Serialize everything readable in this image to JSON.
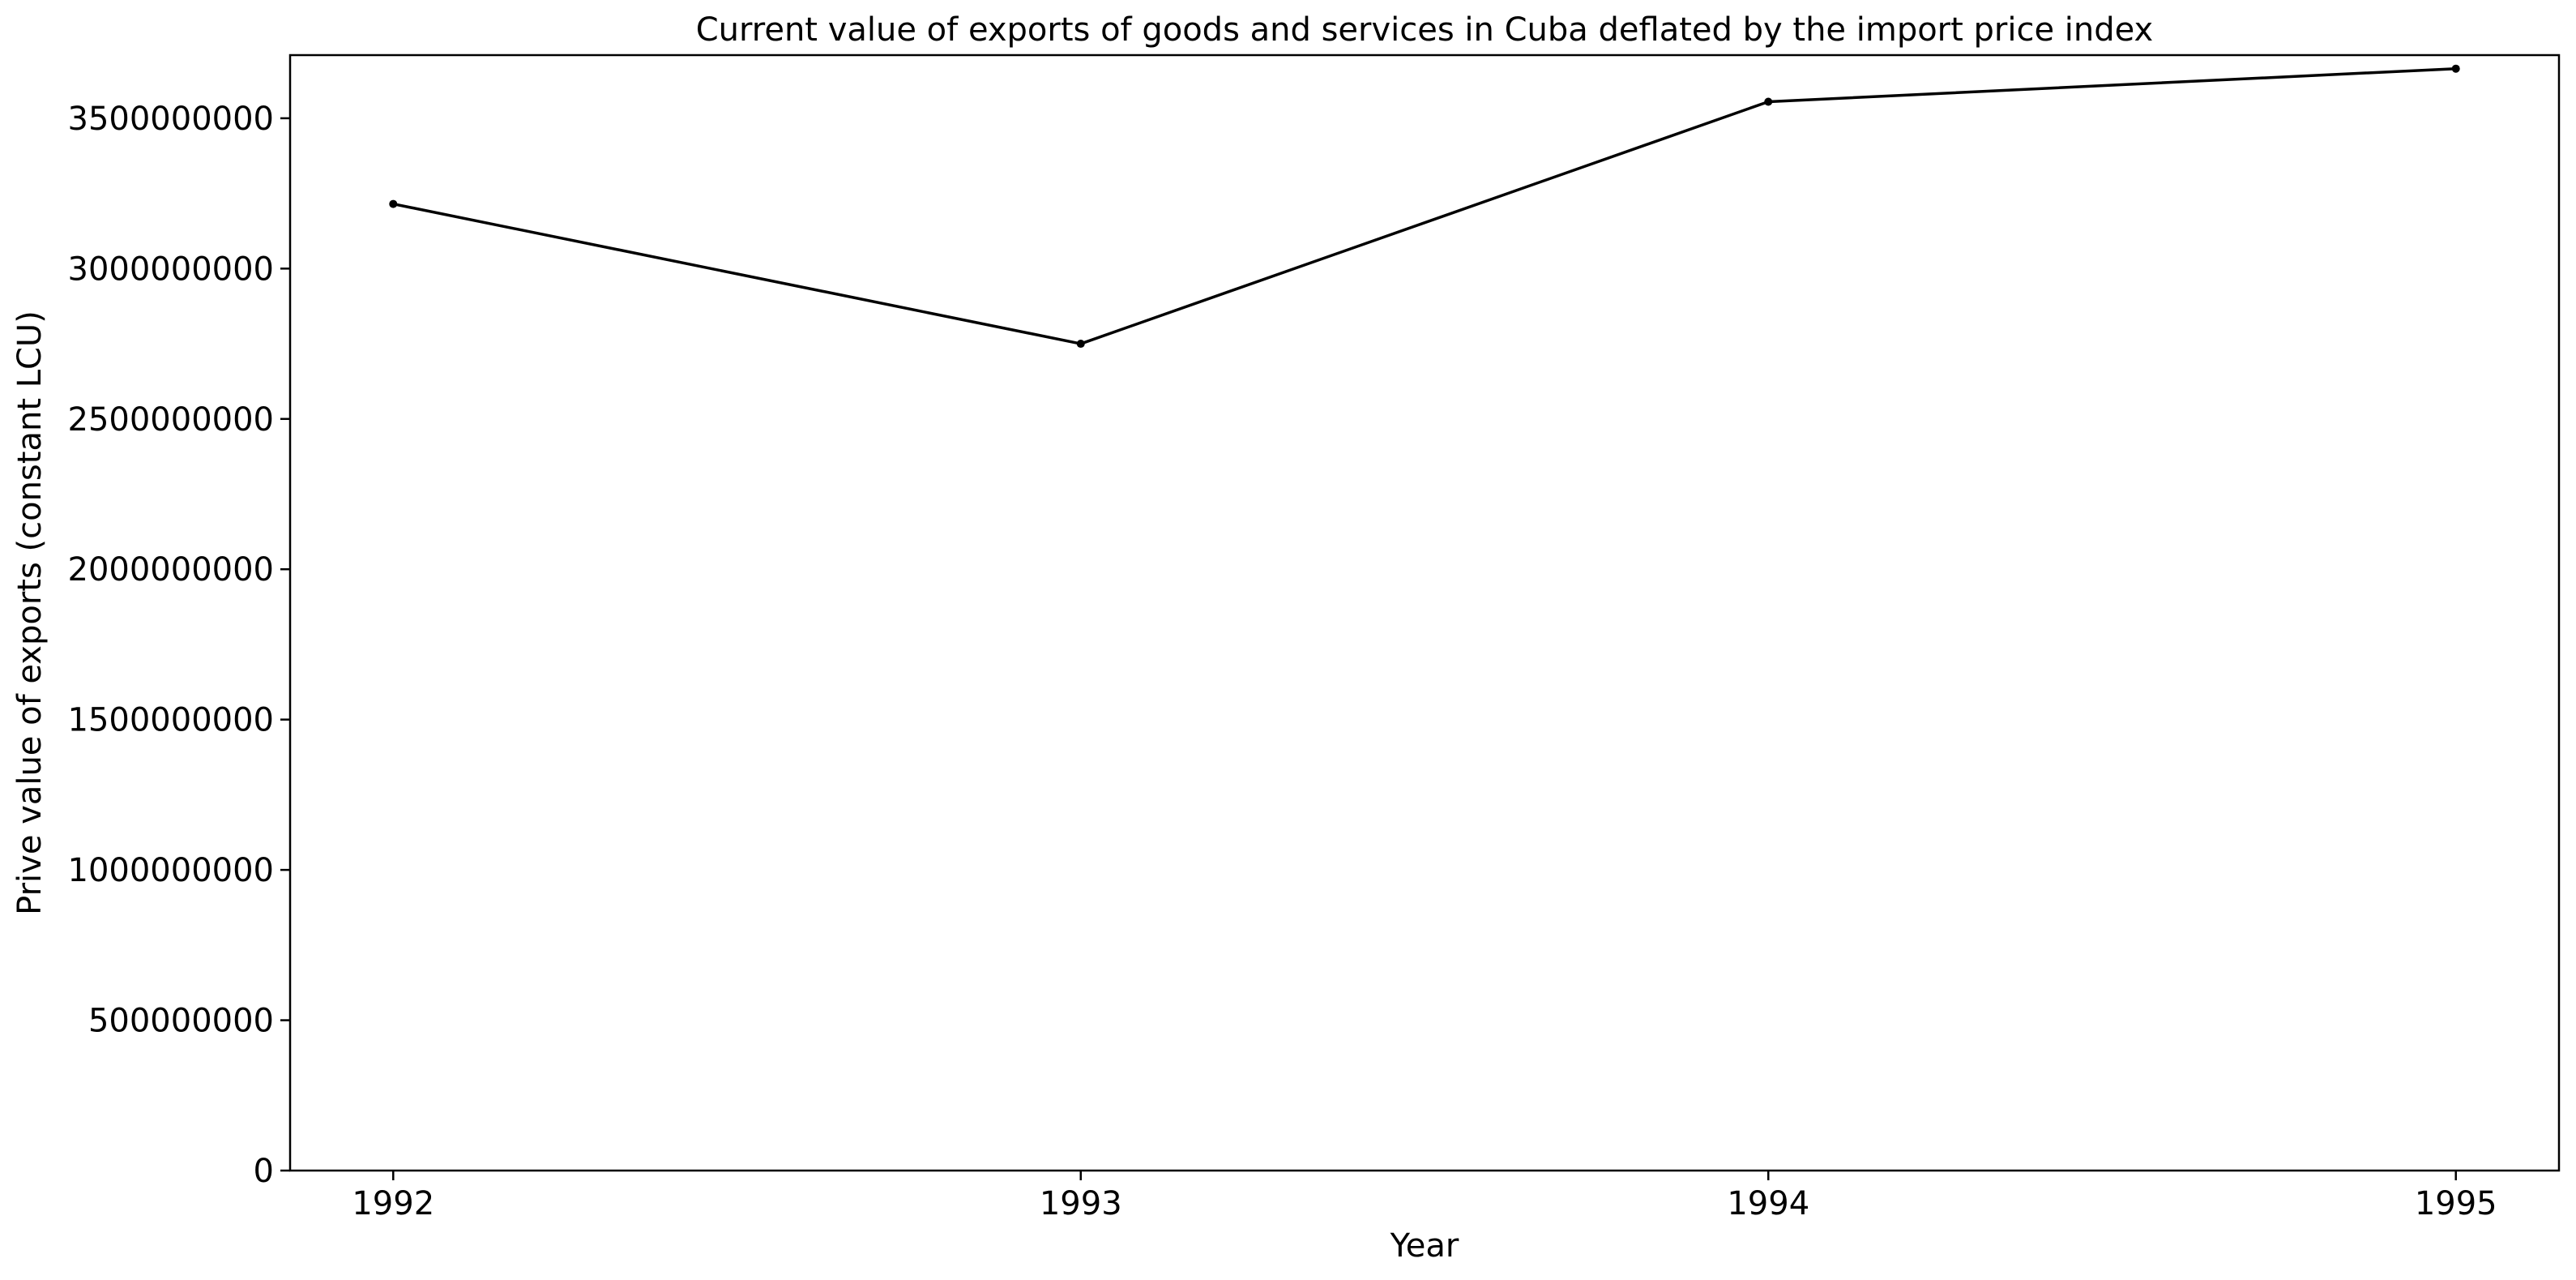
{
  "chart_data": {
    "type": "line",
    "title": "Current value of exports of goods and services in Cuba deflated by the import price index",
    "xlabel": "Year",
    "ylabel": "Prive value of exports (constant LCU)",
    "x": [
      "1992",
      "1993",
      "1994",
      "1995"
    ],
    "series": [
      {
        "values": [
          3215000000,
          2750000000,
          3555000000,
          3665000000
        ],
        "color": "#000000",
        "marker": "circle"
      }
    ],
    "ylim": [
      0,
      3710000000
    ],
    "xlim": [
      1991.85,
      1995.15
    ],
    "yticks": [
      0,
      500000000,
      1000000000,
      1500000000,
      2000000000,
      2500000000,
      3000000000,
      3500000000
    ],
    "ytick_labels": [
      "0",
      "500000000",
      "1000000000",
      "1500000000",
      "2000000000",
      "2500000000",
      "3000000000",
      "3500000000"
    ],
    "xticks": [
      "1992",
      "1993",
      "1994",
      "1995"
    ],
    "grid": false,
    "legend": false
  }
}
